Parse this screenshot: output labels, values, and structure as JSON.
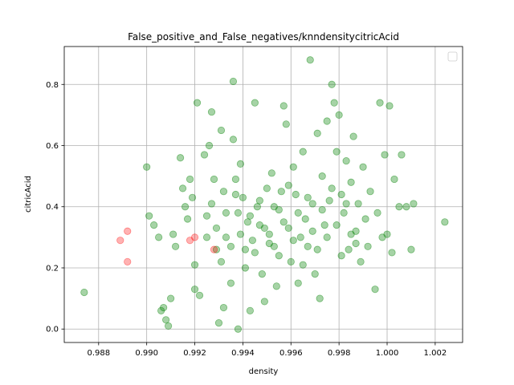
{
  "chart_data": {
    "type": "scatter",
    "title": "False_positive_and_False_negatives/knndensitycitricAcid",
    "xlabel": "density",
    "ylabel": "citricAcid",
    "xlim": [
      0.98657,
      1.00314
    ],
    "ylim": [
      -0.044,
      0.924
    ],
    "xticks": [
      0.988,
      0.99,
      0.992,
      0.994,
      0.996,
      0.998,
      1.0,
      1.002
    ],
    "xtick_labels": [
      "0.988",
      "0.990",
      "0.992",
      "0.994",
      "0.996",
      "0.998",
      "1.000",
      "1.002"
    ],
    "yticks": [
      0.0,
      0.2,
      0.4,
      0.6,
      0.8
    ],
    "ytick_labels": [
      "0.0",
      "0.2",
      "0.4",
      "0.6",
      "0.8"
    ],
    "grid": true,
    "legend": "top-right (empty)",
    "colors": {
      "green": "#008000",
      "red": "#ff0000"
    },
    "series": [
      {
        "color": "green",
        "alpha": 0.35,
        "points": [
          [
            0.9874,
            0.12
          ],
          [
            0.99,
            0.53
          ],
          [
            0.9901,
            0.37
          ],
          [
            0.9903,
            0.34
          ],
          [
            0.9905,
            0.3
          ],
          [
            0.9906,
            0.06
          ],
          [
            0.9907,
            0.07
          ],
          [
            0.9908,
            0.03
          ],
          [
            0.9909,
            0.01
          ],
          [
            0.991,
            0.1
          ],
          [
            0.9911,
            0.31
          ],
          [
            0.9912,
            0.27
          ],
          [
            0.9914,
            0.56
          ],
          [
            0.9915,
            0.46
          ],
          [
            0.9916,
            0.4
          ],
          [
            0.9917,
            0.36
          ],
          [
            0.9918,
            0.49
          ],
          [
            0.9919,
            0.43
          ],
          [
            0.992,
            0.21
          ],
          [
            0.992,
            0.13
          ],
          [
            0.9921,
            0.74
          ],
          [
            0.9922,
            0.11
          ],
          [
            0.9924,
            0.57
          ],
          [
            0.9925,
            0.37
          ],
          [
            0.9926,
            0.6
          ],
          [
            0.9927,
            0.71
          ],
          [
            0.9928,
            0.49
          ],
          [
            0.9929,
            0.26
          ],
          [
            0.993,
            0.02
          ],
          [
            0.9931,
            0.65
          ],
          [
            0.9932,
            0.45
          ],
          [
            0.9932,
            0.07
          ],
          [
            0.9933,
            0.3
          ],
          [
            0.9935,
            0.15
          ],
          [
            0.9936,
            0.81
          ],
          [
            0.9936,
            0.62
          ],
          [
            0.9937,
            0.49
          ],
          [
            0.9938,
            0.0
          ],
          [
            0.9938,
            0.38
          ],
          [
            0.9939,
            0.54
          ],
          [
            0.994,
            0.43
          ],
          [
            0.9941,
            0.26
          ],
          [
            0.9942,
            0.35
          ],
          [
            0.9943,
            0.06
          ],
          [
            0.9944,
            0.29
          ],
          [
            0.9945,
            0.74
          ],
          [
            0.9946,
            0.4
          ],
          [
            0.9947,
            0.34
          ],
          [
            0.9948,
            0.18
          ],
          [
            0.9949,
            0.09
          ],
          [
            0.995,
            0.46
          ],
          [
            0.9951,
            0.31
          ],
          [
            0.9952,
            0.51
          ],
          [
            0.9953,
            0.27
          ],
          [
            0.9954,
            0.14
          ],
          [
            0.9955,
            0.39
          ],
          [
            0.9956,
            0.45
          ],
          [
            0.9957,
            0.73
          ],
          [
            0.9958,
            0.67
          ],
          [
            0.9959,
            0.33
          ],
          [
            0.996,
            0.22
          ],
          [
            0.9961,
            0.53
          ],
          [
            0.9962,
            0.44
          ],
          [
            0.9963,
            0.15
          ],
          [
            0.9964,
            0.3
          ],
          [
            0.9965,
            0.58
          ],
          [
            0.9966,
            0.36
          ],
          [
            0.9967,
            0.27
          ],
          [
            0.9968,
            0.88
          ],
          [
            0.9969,
            0.41
          ],
          [
            0.997,
            0.18
          ],
          [
            0.9971,
            0.64
          ],
          [
            0.9972,
            0.1
          ],
          [
            0.9973,
            0.5
          ],
          [
            0.9974,
            0.34
          ],
          [
            0.9975,
            0.68
          ],
          [
            0.9976,
            0.42
          ],
          [
            0.9977,
            0.8
          ],
          [
            0.9978,
            0.74
          ],
          [
            0.9979,
            0.58
          ],
          [
            0.998,
            0.7
          ],
          [
            0.9981,
            0.44
          ],
          [
            0.9982,
            0.38
          ],
          [
            0.9983,
            0.55
          ],
          [
            0.9984,
            0.26
          ],
          [
            0.9985,
            0.48
          ],
          [
            0.9986,
            0.63
          ],
          [
            0.9987,
            0.32
          ],
          [
            0.9988,
            0.41
          ],
          [
            0.9989,
            0.22
          ],
          [
            0.999,
            0.53
          ],
          [
            0.9991,
            0.36
          ],
          [
            0.9992,
            0.27
          ],
          [
            0.9993,
            0.45
          ],
          [
            0.9995,
            0.13
          ],
          [
            0.9996,
            0.38
          ],
          [
            0.9997,
            0.74
          ],
          [
            0.9998,
            0.3
          ],
          [
            0.9999,
            0.57
          ],
          [
            1.0,
            0.31
          ],
          [
            1.0001,
            0.73
          ],
          [
            1.0002,
            0.25
          ],
          [
            1.0003,
            0.49
          ],
          [
            1.0005,
            0.4
          ],
          [
            1.0006,
            0.57
          ],
          [
            1.0008,
            0.4
          ],
          [
            1.001,
            0.26
          ],
          [
            1.0011,
            0.41
          ],
          [
            1.0024,
            0.35
          ],
          [
            0.9925,
            0.3
          ],
          [
            0.9927,
            0.41
          ],
          [
            0.9929,
            0.33
          ],
          [
            0.9931,
            0.22
          ],
          [
            0.9933,
            0.38
          ],
          [
            0.9935,
            0.27
          ],
          [
            0.9937,
            0.44
          ],
          [
            0.9939,
            0.31
          ],
          [
            0.9941,
            0.2
          ],
          [
            0.9943,
            0.37
          ],
          [
            0.9945,
            0.25
          ],
          [
            0.9947,
            0.42
          ],
          [
            0.9949,
            0.33
          ],
          [
            0.9951,
            0.28
          ],
          [
            0.9953,
            0.4
          ],
          [
            0.9955,
            0.24
          ],
          [
            0.9957,
            0.35
          ],
          [
            0.9959,
            0.47
          ],
          [
            0.9961,
            0.29
          ],
          [
            0.9963,
            0.38
          ],
          [
            0.9965,
            0.21
          ],
          [
            0.9967,
            0.43
          ],
          [
            0.9969,
            0.32
          ],
          [
            0.9971,
            0.26
          ],
          [
            0.9973,
            0.39
          ],
          [
            0.9975,
            0.3
          ],
          [
            0.9977,
            0.46
          ],
          [
            0.9979,
            0.34
          ],
          [
            0.9981,
            0.24
          ],
          [
            0.9983,
            0.41
          ],
          [
            0.9985,
            0.31
          ],
          [
            0.9987,
            0.28
          ]
        ]
      },
      {
        "color": "red",
        "alpha": 0.3,
        "points": [
          [
            0.9889,
            0.29
          ],
          [
            0.9892,
            0.22
          ],
          [
            0.9892,
            0.32
          ],
          [
            0.9918,
            0.29
          ],
          [
            0.992,
            0.3
          ],
          [
            0.9928,
            0.26
          ]
        ]
      }
    ]
  }
}
